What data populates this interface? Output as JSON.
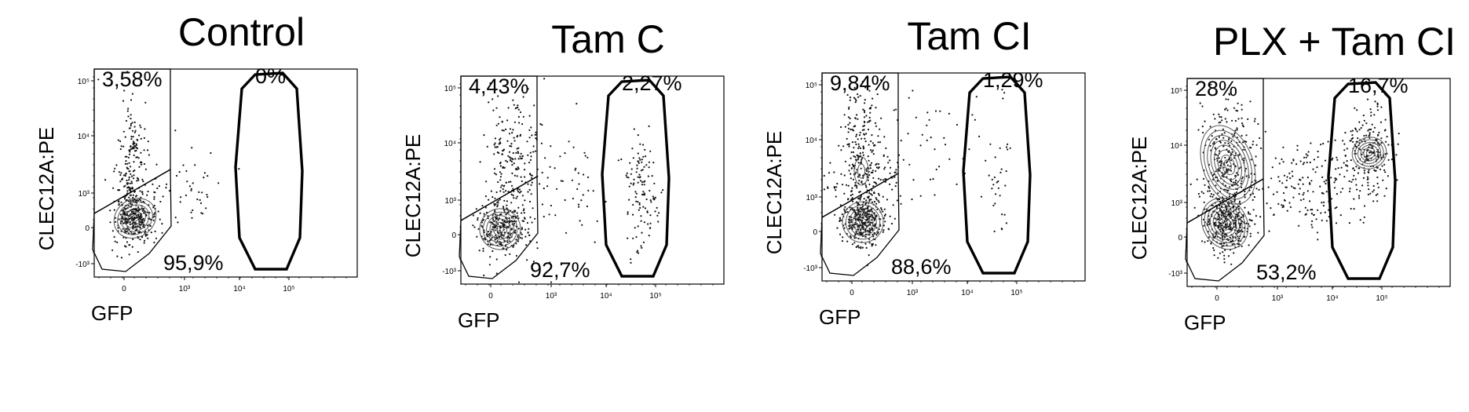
{
  "figure": {
    "panels": [
      {
        "title": "Control",
        "ylabel": "CLEC12A:PE",
        "xlabel": "GFP",
        "gates": {
          "upper_left": "3,58%",
          "upper_right": "0%",
          "lower_left": "95,9%"
        },
        "x_ticks": [
          "0",
          "10³",
          "10⁴",
          "10⁵"
        ],
        "y_ticks": [
          "10⁵",
          "10⁴",
          "10³",
          "0",
          "-10³"
        ]
      },
      {
        "title": "Tam C",
        "ylabel": "CLEC12A:PE",
        "xlabel": "GFP",
        "gates": {
          "upper_left": "4,43%",
          "upper_right": "2,27%",
          "lower_left": "92,7%"
        },
        "x_ticks": [
          "0",
          "10³",
          "10⁴",
          "10⁵"
        ],
        "y_ticks": [
          "10⁵",
          "10⁴",
          "10³",
          "0",
          "-10³"
        ]
      },
      {
        "title": "Tam CI",
        "ylabel": "CLEC12A:PE",
        "xlabel": "GFP",
        "gates": {
          "upper_left": "9,84%",
          "upper_right": "1,29%",
          "lower_left": "88,6%"
        },
        "x_ticks": [
          "0",
          "10³",
          "10⁴",
          "10⁵"
        ],
        "y_ticks": [
          "10⁵",
          "10⁴",
          "10³",
          "0",
          "-10³"
        ]
      },
      {
        "title": "PLX + Tam CI",
        "ylabel": "CLEC12A:PE",
        "xlabel": "GFP",
        "gates": {
          "upper_left": "28%",
          "upper_right": "16,7%",
          "lower_left": "53,2%"
        },
        "x_ticks": [
          "0",
          "10³",
          "10⁴",
          "10⁵"
        ],
        "y_ticks": [
          "10⁵",
          "10⁴",
          "10³",
          "0",
          "-10³"
        ]
      }
    ]
  },
  "chart_data": [
    {
      "type": "scatter",
      "title": "Control",
      "xlabel": "GFP",
      "ylabel": "CLEC12A:PE",
      "x_scale": "biexponential",
      "y_scale": "biexponential",
      "gate_percentages": {
        "CLEC12A+ GFP-": 3.58,
        "CLEC12A+ GFP+": 0,
        "CLEC12A- GFP-": 95.9
      }
    },
    {
      "type": "scatter",
      "title": "Tam C",
      "xlabel": "GFP",
      "ylabel": "CLEC12A:PE",
      "x_scale": "biexponential",
      "y_scale": "biexponential",
      "gate_percentages": {
        "CLEC12A+ GFP-": 4.43,
        "CLEC12A+ GFP+": 2.27,
        "CLEC12A- GFP-": 92.7
      }
    },
    {
      "type": "scatter",
      "title": "Tam CI",
      "xlabel": "GFP",
      "ylabel": "CLEC12A:PE",
      "x_scale": "biexponential",
      "y_scale": "biexponential",
      "gate_percentages": {
        "CLEC12A+ GFP-": 9.84,
        "CLEC12A+ GFP+": 1.29,
        "CLEC12A- GFP-": 88.6
      }
    },
    {
      "type": "scatter",
      "title": "PLX + Tam CI",
      "xlabel": "GFP",
      "ylabel": "CLEC12A:PE",
      "x_scale": "biexponential",
      "y_scale": "biexponential",
      "gate_percentages": {
        "CLEC12A+ GFP-": 28,
        "CLEC12A+ GFP+": 16.7,
        "CLEC12A- GFP-": 53.2
      }
    }
  ]
}
